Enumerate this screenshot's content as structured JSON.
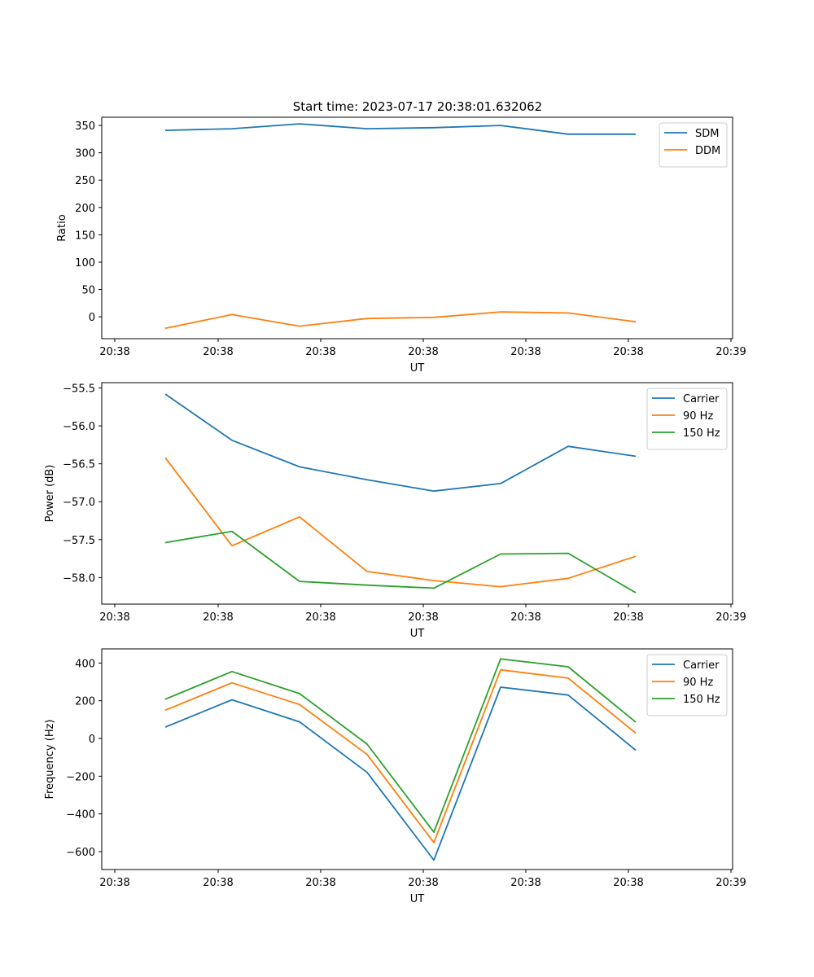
{
  "figure_title": "Start time: 2023-07-17 20:38:01.632062",
  "colors": {
    "blue": "#1f77b4",
    "orange": "#ff7f0e",
    "green": "#2ca02c"
  },
  "chart_data": [
    {
      "type": "line",
      "title": "Start time: 2023-07-17 20:38:01.632062",
      "xlabel": "UT",
      "ylabel": "Ratio",
      "x_ticks": [
        "20:38",
        "20:38",
        "20:38",
        "20:38",
        "20:38",
        "20:38",
        "20:39"
      ],
      "y_ticks": [
        0,
        50,
        100,
        150,
        200,
        250,
        300,
        350
      ],
      "ylim": [
        -40,
        365
      ],
      "legend_position": "top-right",
      "series": [
        {
          "name": "SDM",
          "color": "#1f77b4",
          "values": [
            341,
            344,
            353,
            344,
            346,
            350,
            334,
            334
          ]
        },
        {
          "name": "DDM",
          "color": "#ff7f0e",
          "values": [
            -21,
            4,
            -17,
            -3,
            -1,
            9,
            7,
            -9
          ]
        }
      ]
    },
    {
      "type": "line",
      "title": "",
      "xlabel": "UT",
      "ylabel": "Power (dB)",
      "x_ticks": [
        "20:38",
        "20:38",
        "20:38",
        "20:38",
        "20:38",
        "20:38",
        "20:39"
      ],
      "y_ticks": [
        "−58.0",
        "−57.5",
        "−57.0",
        "−56.5",
        "−56.0",
        "−55.5"
      ],
      "y_tick_values": [
        -58.0,
        -57.5,
        -57.0,
        -56.5,
        -56.0,
        -55.5
      ],
      "ylim": [
        -58.35,
        -55.43
      ],
      "legend_position": "top-right",
      "series": [
        {
          "name": "Carrier",
          "color": "#1f77b4",
          "values": [
            -55.58,
            -56.19,
            -56.54,
            -56.71,
            -56.86,
            -56.76,
            -56.27,
            -56.4
          ]
        },
        {
          "name": "90 Hz",
          "color": "#ff7f0e",
          "values": [
            -56.42,
            -57.58,
            -57.2,
            -57.92,
            -58.04,
            -58.12,
            -58.01,
            -57.72
          ]
        },
        {
          "name": "150 Hz",
          "color": "#2ca02c",
          "values": [
            -57.54,
            -57.39,
            -58.05,
            -58.1,
            -58.14,
            -57.69,
            -57.68,
            -58.2
          ]
        }
      ]
    },
    {
      "type": "line",
      "title": "",
      "xlabel": "UT",
      "ylabel": "Frequency (Hz)",
      "x_ticks": [
        "20:38",
        "20:38",
        "20:38",
        "20:38",
        "20:38",
        "20:38",
        "20:39"
      ],
      "y_ticks": [
        "−600",
        "−400",
        "−200",
        "0",
        "200",
        "400"
      ],
      "y_tick_values": [
        -600,
        -400,
        -200,
        0,
        200,
        400
      ],
      "ylim": [
        -695,
        475
      ],
      "legend_position": "top-right",
      "series": [
        {
          "name": "Carrier",
          "color": "#1f77b4",
          "values": [
            60,
            205,
            88,
            -180,
            -645,
            272,
            230,
            -62
          ]
        },
        {
          "name": "90 Hz",
          "color": "#ff7f0e",
          "values": [
            150,
            295,
            180,
            -85,
            -552,
            364,
            320,
            28
          ]
        },
        {
          "name": "150 Hz",
          "color": "#2ca02c",
          "values": [
            208,
            355,
            238,
            -30,
            -497,
            422,
            380,
            87
          ]
        }
      ]
    }
  ]
}
